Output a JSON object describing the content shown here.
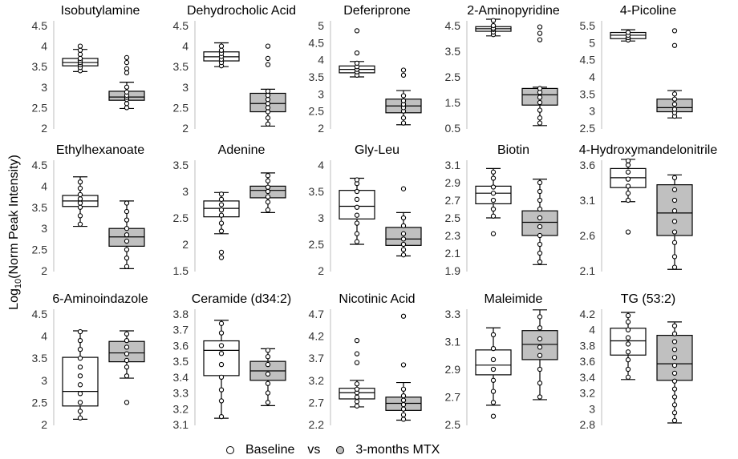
{
  "figure": {
    "y_axis_label": "Log",
    "y_axis_label_sub": "10",
    "y_axis_label_rest": "(Norm Peak Intensity)"
  },
  "legend": {
    "baseline": "Baseline",
    "separator": "vs",
    "treatment": "3-months MTX",
    "baseline_color": "#ffffff",
    "treatment_color": "#c0c0c0"
  },
  "chart_data": [
    {
      "type": "box",
      "title": "Isobutylamine",
      "ylim": [
        2,
        4.5
      ],
      "ticks": [
        "4.5",
        "4",
        "3.5",
        "3",
        "2.5",
        "2"
      ],
      "series": [
        {
          "name": "Baseline",
          "whisker_low": 3.38,
          "q1": 3.52,
          "median": 3.6,
          "q3": 3.7,
          "whisker_high": 3.92,
          "outliers": [
            4.0
          ],
          "points": [
            3.4,
            3.48,
            3.55,
            3.6,
            3.65,
            3.7,
            3.8,
            3.9
          ]
        },
        {
          "name": "3-months MTX",
          "whisker_low": 2.48,
          "q1": 2.68,
          "median": 2.76,
          "q3": 2.9,
          "whisker_high": 3.12,
          "outliers": [
            3.72,
            3.6,
            3.45,
            3.35
          ],
          "points": [
            2.5,
            2.6,
            2.7,
            2.75,
            2.8,
            2.88,
            3.0
          ]
        }
      ]
    },
    {
      "type": "box",
      "title": "Dehydrocholic Acid",
      "ylim": [
        2,
        4.5
      ],
      "ticks": [
        "4.5",
        "4",
        "3.5",
        "3",
        "2.5",
        "2"
      ],
      "series": [
        {
          "name": "Baseline",
          "whisker_low": 3.5,
          "q1": 3.64,
          "median": 3.74,
          "q3": 3.86,
          "whisker_high": 4.08,
          "outliers": [],
          "points": [
            3.52,
            3.6,
            3.68,
            3.75,
            3.82,
            3.9,
            4.0
          ]
        },
        {
          "name": "3-months MTX",
          "whisker_low": 2.05,
          "q1": 2.4,
          "median": 2.6,
          "q3": 2.85,
          "whisker_high": 2.95,
          "outliers": [
            4.0,
            3.7,
            3.55
          ],
          "points": [
            2.1,
            2.25,
            2.4,
            2.5,
            2.6,
            2.7,
            2.8,
            2.9
          ]
        }
      ]
    },
    {
      "type": "box",
      "title": "Deferiprone",
      "ylim": [
        2,
        5
      ],
      "ticks": [
        "5",
        "4.5",
        "4",
        "3.5",
        "3",
        "2.5",
        "2"
      ],
      "series": [
        {
          "name": "Baseline",
          "whisker_low": 3.5,
          "q1": 3.62,
          "median": 3.72,
          "q3": 3.82,
          "whisker_high": 3.95,
          "outliers": [
            4.85,
            4.2
          ],
          "points": [
            3.55,
            3.65,
            3.72,
            3.8,
            3.9
          ]
        },
        {
          "name": "3-months MTX",
          "whisker_low": 2.1,
          "q1": 2.45,
          "median": 2.65,
          "q3": 2.85,
          "whisker_high": 3.1,
          "outliers": [
            3.7,
            3.55
          ],
          "points": [
            2.15,
            2.3,
            2.5,
            2.6,
            2.7,
            2.8,
            2.95
          ]
        }
      ]
    },
    {
      "type": "box",
      "title": "2-Aminopyridine",
      "ylim": [
        0.5,
        4.5
      ],
      "ticks": [
        "4.5",
        "3.5",
        "2.5",
        "1.5",
        "0.5"
      ],
      "series": [
        {
          "name": "Baseline",
          "whisker_low": 4.1,
          "q1": 4.28,
          "median": 4.38,
          "q3": 4.46,
          "whisker_high": 4.75,
          "outliers": [],
          "points": [
            4.15,
            4.25,
            4.35,
            4.4,
            4.5,
            4.7
          ]
        },
        {
          "name": "3-months MTX",
          "whisker_low": 0.6,
          "q1": 1.4,
          "median": 1.8,
          "q3": 2.05,
          "whisker_high": 2.1,
          "outliers": [
            4.45,
            4.2,
            3.95
          ],
          "points": [
            0.7,
            0.9,
            1.2,
            1.5,
            1.7,
            1.9,
            2.05
          ]
        }
      ]
    },
    {
      "type": "box",
      "title": "4-Picoline",
      "ylim": [
        2.5,
        5.5
      ],
      "ticks": [
        "5.5",
        "5",
        "4.5",
        "4",
        "3.5",
        "3",
        "2.5"
      ],
      "series": [
        {
          "name": "Baseline",
          "whisker_low": 5.05,
          "q1": 5.12,
          "median": 5.22,
          "q3": 5.3,
          "whisker_high": 5.38,
          "outliers": [],
          "points": [
            5.08,
            5.15,
            5.22,
            5.3
          ]
        },
        {
          "name": "3-months MTX",
          "whisker_low": 2.8,
          "q1": 2.98,
          "median": 3.1,
          "q3": 3.35,
          "whisker_high": 3.6,
          "outliers": [
            5.35,
            4.92
          ],
          "points": [
            2.85,
            2.95,
            3.05,
            3.2,
            3.35,
            3.5
          ]
        }
      ]
    },
    {
      "type": "box",
      "title": "Ethylhexanoate",
      "ylim": [
        2,
        4.5
      ],
      "ticks": [
        "4.5",
        "4",
        "3.5",
        "3",
        "2.5",
        "2"
      ],
      "series": [
        {
          "name": "Baseline",
          "whisker_low": 3.05,
          "q1": 3.52,
          "median": 3.65,
          "q3": 3.78,
          "whisker_high": 4.22,
          "outliers": [],
          "points": [
            3.1,
            3.3,
            3.5,
            3.6,
            3.7,
            3.8,
            3.95,
            4.1
          ]
        },
        {
          "name": "3-months MTX",
          "whisker_low": 2.05,
          "q1": 2.58,
          "median": 2.8,
          "q3": 3.0,
          "whisker_high": 3.65,
          "outliers": [],
          "points": [
            2.1,
            2.3,
            2.5,
            2.7,
            2.85,
            3.0,
            3.2,
            3.4,
            3.6
          ]
        }
      ]
    },
    {
      "type": "box",
      "title": "Adenine",
      "ylim": [
        1.5,
        3.5
      ],
      "ticks": [
        "3.5",
        "3",
        "2.5",
        "2",
        "1.5"
      ],
      "series": [
        {
          "name": "Baseline",
          "whisker_low": 2.2,
          "q1": 2.52,
          "median": 2.68,
          "q3": 2.82,
          "whisker_high": 2.98,
          "outliers": [
            1.85,
            1.75
          ],
          "points": [
            2.25,
            2.4,
            2.55,
            2.65,
            2.75,
            2.85,
            2.95
          ]
        },
        {
          "name": "3-months MTX",
          "whisker_low": 2.6,
          "q1": 2.88,
          "median": 3.02,
          "q3": 3.1,
          "whisker_high": 3.35,
          "outliers": [],
          "points": [
            2.65,
            2.8,
            2.9,
            3.0,
            3.08,
            3.2,
            3.3
          ]
        }
      ]
    },
    {
      "type": "box",
      "title": "Gly-Leu",
      "ylim": [
        2,
        4
      ],
      "ticks": [
        "4",
        "3.5",
        "3",
        "2.5",
        "2"
      ],
      "series": [
        {
          "name": "Baseline",
          "whisker_low": 2.5,
          "q1": 2.98,
          "median": 3.22,
          "q3": 3.52,
          "whisker_high": 3.75,
          "outliers": [],
          "points": [
            2.55,
            2.7,
            2.9,
            3.05,
            3.2,
            3.35,
            3.5,
            3.65,
            3.72
          ]
        },
        {
          "name": "3-months MTX",
          "whisker_low": 2.28,
          "q1": 2.48,
          "median": 2.6,
          "q3": 2.82,
          "whisker_high": 3.1,
          "outliers": [
            3.55
          ],
          "points": [
            2.3,
            2.4,
            2.5,
            2.6,
            2.7,
            2.85,
            3.0
          ]
        }
      ]
    },
    {
      "type": "box",
      "title": "Biotin",
      "ylim": [
        1.9,
        3.1
      ],
      "ticks": [
        "3.1",
        "2.9",
        "2.7",
        "2.5",
        "2.3",
        "2.1",
        "1.9"
      ],
      "series": [
        {
          "name": "Baseline",
          "whisker_low": 2.5,
          "q1": 2.66,
          "median": 2.78,
          "q3": 2.86,
          "whisker_high": 3.06,
          "outliers": [
            2.32
          ],
          "points": [
            2.52,
            2.6,
            2.7,
            2.78,
            2.85,
            2.95,
            3.02
          ]
        },
        {
          "name": "3-months MTX",
          "whisker_low": 1.97,
          "q1": 2.3,
          "median": 2.45,
          "q3": 2.58,
          "whisker_high": 2.94,
          "outliers": [],
          "points": [
            2.0,
            2.1,
            2.2,
            2.3,
            2.4,
            2.5,
            2.6,
            2.7,
            2.8,
            2.9
          ]
        }
      ]
    },
    {
      "type": "box",
      "title": "4-Hydroxymandelonitrile",
      "ylim": [
        2.1,
        3.6
      ],
      "ticks": [
        "3.6",
        "3.1",
        "2.6",
        "2.1"
      ],
      "series": [
        {
          "name": "Baseline",
          "whisker_low": 3.08,
          "q1": 3.28,
          "median": 3.42,
          "q3": 3.55,
          "whisker_high": 3.68,
          "outliers": [
            2.65
          ],
          "points": [
            3.1,
            3.2,
            3.3,
            3.4,
            3.5,
            3.6,
            3.66
          ]
        },
        {
          "name": "3-months MTX",
          "whisker_low": 2.12,
          "q1": 2.6,
          "median": 2.92,
          "q3": 3.32,
          "whisker_high": 3.46,
          "outliers": [],
          "points": [
            2.15,
            2.3,
            2.5,
            2.65,
            2.8,
            2.95,
            3.1,
            3.25,
            3.42
          ]
        }
      ]
    },
    {
      "type": "box",
      "title": "6-Aminoindazole",
      "ylim": [
        2,
        4.5
      ],
      "ticks": [
        "4.5",
        "4",
        "3.5",
        "3",
        "2.5",
        "2"
      ],
      "series": [
        {
          "name": "Baseline",
          "whisker_low": 2.12,
          "q1": 2.42,
          "median": 2.75,
          "q3": 3.52,
          "whisker_high": 4.12,
          "outliers": [],
          "points": [
            2.15,
            2.3,
            2.5,
            2.7,
            2.9,
            3.1,
            3.3,
            3.5,
            3.7,
            3.9,
            4.1
          ]
        },
        {
          "name": "3-months MTX",
          "whisker_low": 3.05,
          "q1": 3.42,
          "median": 3.62,
          "q3": 3.88,
          "whisker_high": 4.12,
          "outliers": [
            2.5
          ],
          "points": [
            3.1,
            3.3,
            3.45,
            3.6,
            3.75,
            3.9,
            4.05
          ]
        }
      ]
    },
    {
      "type": "box",
      "title": "Ceramide (d34:2)",
      "ylim": [
        3.1,
        3.8
      ],
      "ticks": [
        "3.8",
        "3.7",
        "3.6",
        "3.5",
        "3.4",
        "3.3",
        "3.2",
        "3.1"
      ],
      "series": [
        {
          "name": "Baseline",
          "whisker_low": 3.14,
          "q1": 3.41,
          "median": 3.57,
          "q3": 3.63,
          "whisker_high": 3.76,
          "outliers": [],
          "points": [
            3.15,
            3.25,
            3.32,
            3.4,
            3.48,
            3.55,
            3.6,
            3.68,
            3.74
          ]
        },
        {
          "name": "3-months MTX",
          "whisker_low": 3.22,
          "q1": 3.38,
          "median": 3.44,
          "q3": 3.5,
          "whisker_high": 3.58,
          "outliers": [],
          "points": [
            3.24,
            3.3,
            3.36,
            3.42,
            3.48,
            3.53,
            3.57
          ]
        }
      ]
    },
    {
      "type": "box",
      "title": "Nicotinic Acid",
      "ylim": [
        2.2,
        4.7
      ],
      "ticks": [
        "4.7",
        "4.2",
        "3.7",
        "3.2",
        "2.7",
        "2.2"
      ],
      "series": [
        {
          "name": "Baseline",
          "whisker_low": 2.6,
          "q1": 2.78,
          "median": 2.92,
          "q3": 3.02,
          "whisker_high": 3.2,
          "outliers": [
            4.1,
            3.8,
            3.6
          ],
          "points": [
            2.62,
            2.72,
            2.82,
            2.92,
            3.0,
            3.12
          ]
        },
        {
          "name": "3-months MTX",
          "whisker_low": 2.3,
          "q1": 2.52,
          "median": 2.68,
          "q3": 2.82,
          "whisker_high": 3.15,
          "outliers": [
            4.65,
            3.55
          ],
          "points": [
            2.32,
            2.42,
            2.55,
            2.65,
            2.75,
            2.85,
            3.0
          ]
        }
      ]
    },
    {
      "type": "box",
      "title": "Maleimide",
      "ylim": [
        2.5,
        3.3
      ],
      "ticks": [
        "3.3",
        "3.1",
        "2.9",
        "2.7",
        "2.5"
      ],
      "series": [
        {
          "name": "Baseline",
          "whisker_low": 2.64,
          "q1": 2.86,
          "median": 2.93,
          "q3": 3.04,
          "whisker_high": 3.2,
          "outliers": [
            2.56
          ],
          "points": [
            2.66,
            2.74,
            2.82,
            2.9,
            2.97,
            3.05,
            3.15
          ]
        },
        {
          "name": "3-months MTX",
          "whisker_low": 2.68,
          "q1": 2.97,
          "median": 3.08,
          "q3": 3.18,
          "whisker_high": 3.33,
          "outliers": [],
          "points": [
            2.7,
            2.8,
            2.9,
            3.0,
            3.06,
            3.12,
            3.2,
            3.28
          ]
        }
      ]
    },
    {
      "type": "box",
      "title": "TG (53:2)",
      "ylim": [
        2.8,
        4.2
      ],
      "ticks": [
        "4.2",
        "4",
        "3.8",
        "3.6",
        "3.4",
        "3.2",
        "3",
        "2.8"
      ],
      "series": [
        {
          "name": "Baseline",
          "whisker_low": 3.37,
          "q1": 3.68,
          "median": 3.86,
          "q3": 4.02,
          "whisker_high": 4.22,
          "outliers": [],
          "points": [
            3.4,
            3.5,
            3.62,
            3.72,
            3.82,
            3.9,
            4.0,
            4.1,
            4.18
          ]
        },
        {
          "name": "3-months MTX",
          "whisker_low": 2.82,
          "q1": 3.36,
          "median": 3.57,
          "q3": 3.93,
          "whisker_high": 4.1,
          "outliers": [],
          "points": [
            2.85,
            2.95,
            3.05,
            3.15,
            3.25,
            3.35,
            3.45,
            3.55,
            3.65,
            3.75,
            3.85,
            3.95,
            4.05
          ]
        }
      ]
    }
  ]
}
